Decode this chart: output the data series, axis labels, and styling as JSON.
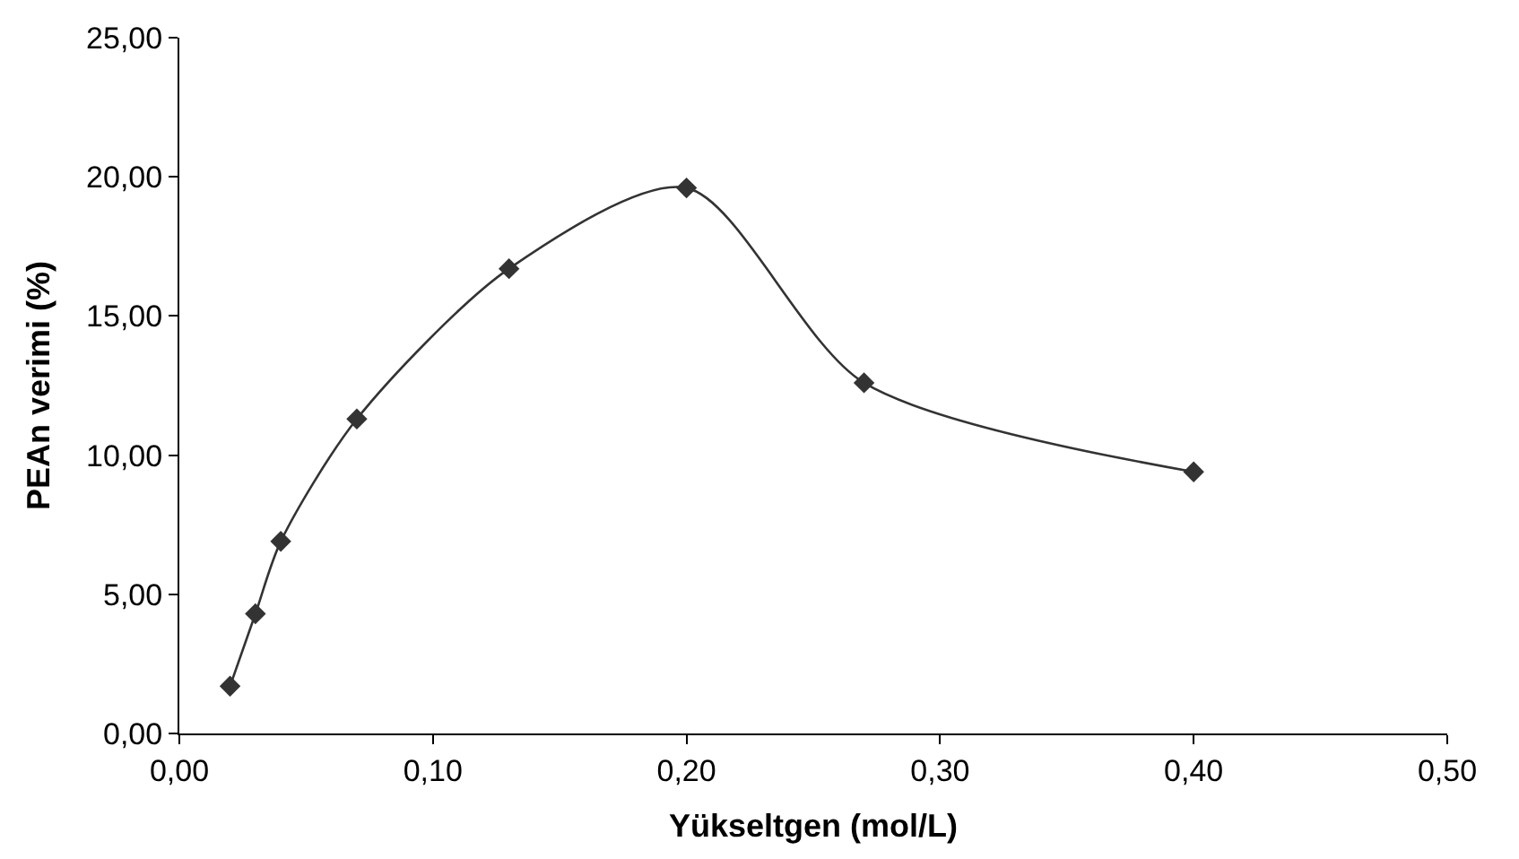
{
  "chart_data": {
    "type": "line",
    "xlabel": "Yükseltgen (mol/L)",
    "ylabel": "PEAn verimi (%)",
    "x": [
      0.02,
      0.03,
      0.04,
      0.07,
      0.13,
      0.2,
      0.27,
      0.4
    ],
    "series": [
      {
        "color": "#333333",
        "values": [
          1.7,
          4.3,
          6.9,
          11.3,
          16.7,
          19.6,
          12.6,
          9.4
        ]
      }
    ],
    "marker": "diamond",
    "line_style": "solid",
    "legend": false,
    "xlim": [
      0,
      0.5
    ],
    "ylim": [
      0,
      25
    ],
    "xticks": [
      {
        "value": 0,
        "label": "0,00"
      },
      {
        "value": 0.1,
        "label": "0,10"
      },
      {
        "value": 0.2,
        "label": "0,20"
      },
      {
        "value": 0.3,
        "label": "0,30"
      },
      {
        "value": 0.4,
        "label": "0,40"
      },
      {
        "value": 0.5,
        "label": "0,50"
      }
    ],
    "yticks": [
      {
        "value": 0,
        "label": "0,00"
      },
      {
        "value": 5,
        "label": "5,00"
      },
      {
        "value": 10,
        "label": "10,00"
      },
      {
        "value": 15,
        "label": "15,00"
      },
      {
        "value": 20,
        "label": "20,00"
      },
      {
        "value": 25,
        "label": "25,00"
      }
    ]
  }
}
